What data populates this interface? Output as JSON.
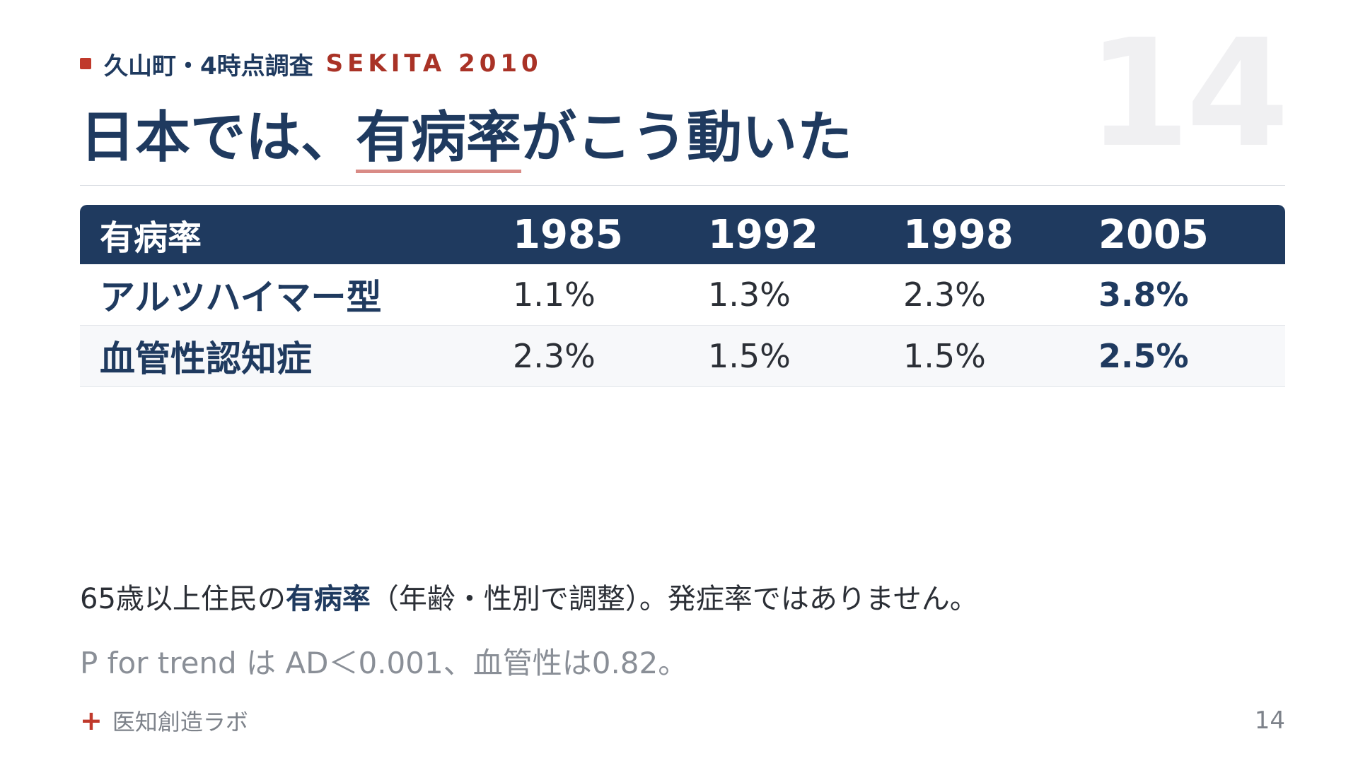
{
  "header": {
    "kicker_text": "久山町・4時点調査",
    "kicker_brand": "SEKITA 2010",
    "title_before": "日本では、",
    "title_emphasis": "有病率",
    "title_after": "がこう動いた",
    "slide_number_large": "14"
  },
  "table": {
    "columns": [
      "有病率",
      "1985",
      "1992",
      "1998",
      "2005"
    ],
    "rows": [
      {
        "label": "アルツハイマー型",
        "values": [
          "1.1%",
          "1.3%",
          "2.3%",
          "3.8%"
        ]
      },
      {
        "label": "血管性認知症",
        "values": [
          "2.3%",
          "1.5%",
          "1.5%",
          "2.5%"
        ]
      }
    ]
  },
  "notes": {
    "line1_before": "65歳以上住民の",
    "line1_emphasis": "有病率",
    "line1_after": "（年齢・性別で調整）。発症率ではありません。",
    "line2": "P for trend は AD＜0.001、血管性は0.82。"
  },
  "footer": {
    "brand": "医知創造ラボ",
    "page_number": "14"
  },
  "colors": {
    "navy": "#1f3a5f",
    "accent_red": "#c0392b",
    "muted_gray": "#8a8f97"
  }
}
